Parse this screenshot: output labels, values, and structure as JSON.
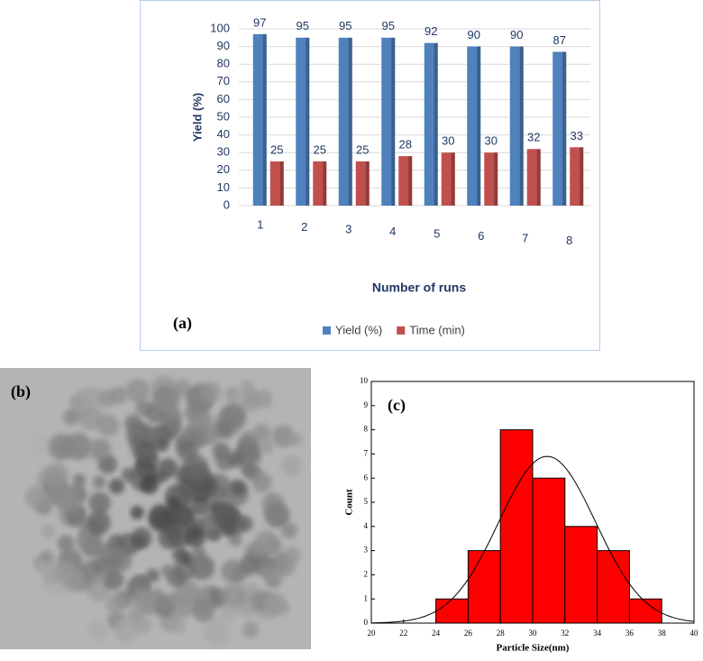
{
  "chart_data": [
    {
      "type": "bar",
      "panel_label": "(a)",
      "ylabel": "Yield (%)",
      "xlabel": "Number of runs",
      "categories": [
        "1",
        "2",
        "3",
        "4",
        "5",
        "6",
        "7",
        "8"
      ],
      "series": [
        {
          "name": "Yield (%)",
          "color": "#4f81bd",
          "values": [
            97,
            95,
            95,
            95,
            92,
            90,
            90,
            87
          ]
        },
        {
          "name": "Time (min)",
          "color": "#c0504d",
          "values": [
            25,
            25,
            25,
            28,
            30,
            30,
            32,
            33
          ]
        }
      ],
      "ylim": [
        0,
        100
      ],
      "yticks": [
        0,
        10,
        20,
        30,
        40,
        50,
        60,
        70,
        80,
        90,
        100
      ],
      "grid": true
    },
    {
      "type": "histogram",
      "panel_label": "(c)",
      "xlabel": "Particle Size(nm)",
      "ylabel": "Count",
      "bins": [
        20,
        22,
        24,
        26,
        28,
        30,
        32,
        34,
        36,
        38,
        40
      ],
      "values": [
        0,
        0,
        1,
        3,
        8,
        6,
        4,
        3,
        1,
        0
      ],
      "color": "#ff0000",
      "fit": {
        "mean": 30.9,
        "sd": 3.0,
        "amplitude": 6.9
      },
      "xlim": [
        20,
        40
      ],
      "ylim": [
        0,
        10
      ],
      "xticks": [
        20,
        22,
        24,
        26,
        28,
        30,
        32,
        34,
        36,
        38,
        40
      ],
      "yticks": [
        0,
        1,
        2,
        3,
        4,
        5,
        6,
        7,
        8,
        9,
        10
      ]
    }
  ],
  "image_panel": {
    "label": "(b)"
  }
}
